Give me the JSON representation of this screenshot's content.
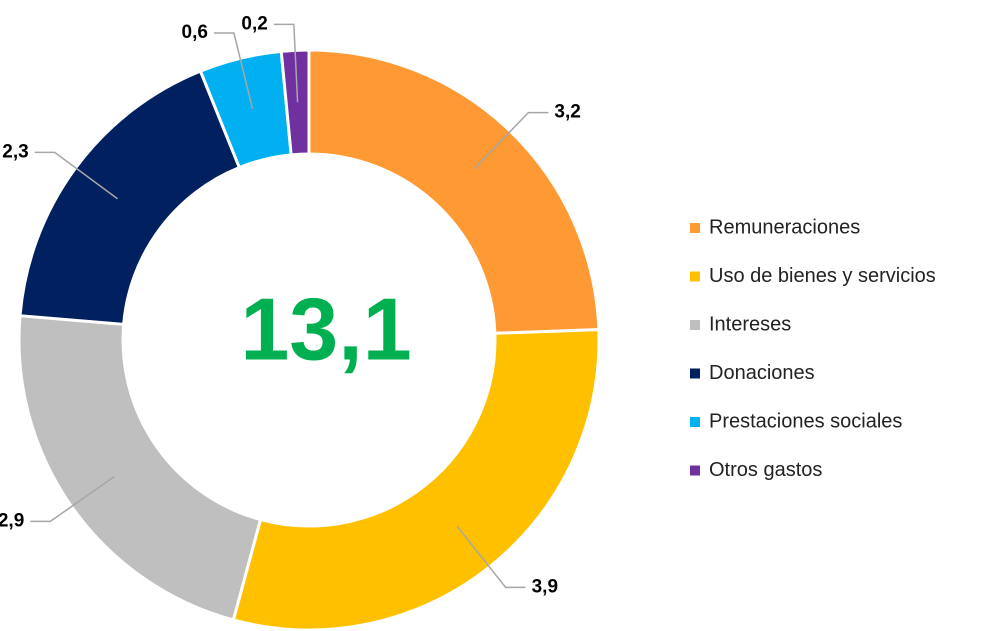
{
  "chart_data": {
    "type": "pie",
    "categories": [
      "Remuneraciones",
      "Uso de bienes y servicios",
      "Intereses",
      "Donaciones",
      "Prestaciones sociales",
      "Otros gastos"
    ],
    "values": [
      3.2,
      3.9,
      2.9,
      2.3,
      0.6,
      0.2
    ],
    "value_labels": [
      "3,2",
      "3,9",
      "2,9",
      "2,3",
      "0,6",
      "0,2"
    ],
    "colors": [
      "#ff9933",
      "#ffc000",
      "#bfbfbf",
      "#002060",
      "#00b0f0",
      "#7030a0"
    ],
    "center_text": "13,1",
    "legend": "right"
  }
}
